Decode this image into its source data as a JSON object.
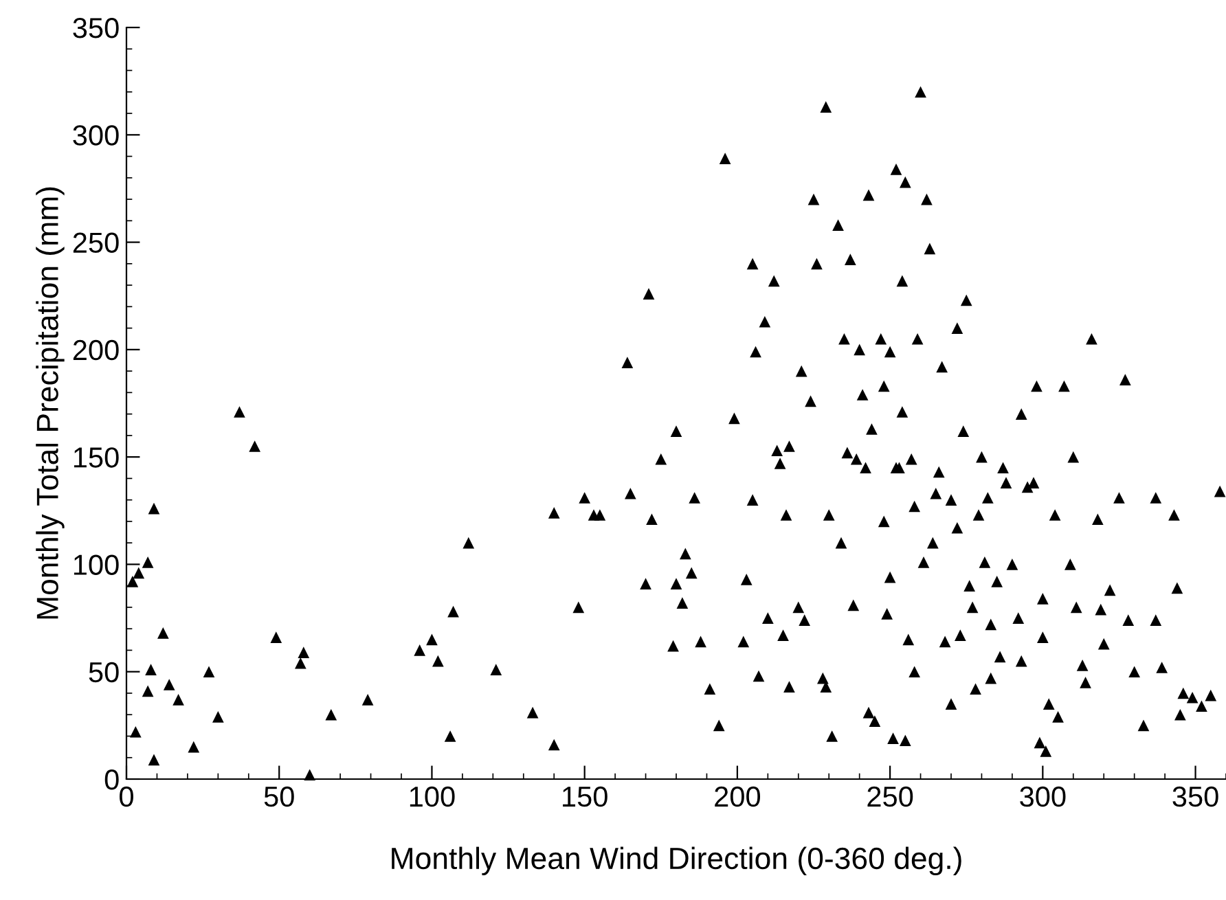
{
  "chart_data": {
    "type": "scatter",
    "xlabel": "Monthly Mean Wind Direction (0-360 deg.)",
    "ylabel": "Monthly Total Precipitation (mm)",
    "xlim": [
      0,
      360
    ],
    "xticks": [
      0,
      50,
      100,
      150,
      200,
      250,
      300,
      350
    ],
    "ylim": [
      0,
      350
    ],
    "yticks": [
      0,
      50,
      100,
      150,
      200,
      250,
      300,
      350
    ],
    "marker": "triangle",
    "grid": false,
    "legend": false,
    "series": [
      {
        "color": "#000000",
        "x": [
          2,
          4,
          7,
          9,
          3,
          8,
          7,
          12,
          14,
          17,
          9,
          22,
          27,
          30,
          37,
          42,
          49,
          57,
          58,
          60,
          67,
          79,
          96,
          100,
          102,
          106,
          107,
          112,
          121,
          133,
          140,
          140,
          148,
          150,
          153,
          155,
          164,
          165,
          170,
          171,
          172,
          175,
          179,
          180,
          180,
          182,
          183,
          185,
          186,
          188,
          191,
          194,
          196,
          199,
          202,
          203,
          205,
          205,
          206,
          207,
          209,
          210,
          212,
          213,
          214,
          215,
          216,
          217,
          217,
          220,
          221,
          222,
          224,
          225,
          226,
          228,
          229,
          229,
          230,
          231,
          233,
          234,
          235,
          236,
          237,
          238,
          239,
          240,
          241,
          242,
          243,
          243,
          244,
          245,
          247,
          248,
          248,
          249,
          250,
          250,
          251,
          252,
          252,
          253,
          254,
          254,
          255,
          255,
          256,
          257,
          258,
          258,
          259,
          260,
          261,
          262,
          263,
          264,
          265,
          266,
          267,
          268,
          270,
          270,
          272,
          272,
          273,
          274,
          275,
          276,
          277,
          278,
          279,
          280,
          281,
          282,
          283,
          283,
          285,
          286,
          287,
          288,
          290,
          292,
          293,
          293,
          295,
          297,
          298,
          299,
          300,
          300,
          301,
          302,
          304,
          305,
          307,
          309,
          310,
          311,
          313,
          314,
          316,
          318,
          319,
          320,
          322,
          325,
          327,
          328,
          330,
          333,
          337,
          337,
          339,
          343,
          344,
          345,
          346,
          349,
          352,
          355,
          358
        ],
        "values": [
          92,
          96,
          101,
          126,
          22,
          51,
          41,
          68,
          44,
          37,
          9,
          15,
          50,
          29,
          171,
          155,
          66,
          54,
          59,
          2,
          30,
          37,
          60,
          65,
          55,
          20,
          78,
          110,
          51,
          31,
          16,
          124,
          80,
          131,
          123,
          123,
          194,
          133,
          91,
          226,
          121,
          149,
          62,
          91,
          162,
          82,
          105,
          96,
          131,
          64,
          42,
          25,
          289,
          168,
          64,
          93,
          130,
          240,
          199,
          48,
          213,
          75,
          232,
          153,
          147,
          67,
          123,
          155,
          43,
          80,
          190,
          74,
          176,
          270,
          240,
          47,
          313,
          43,
          123,
          20,
          258,
          110,
          205,
          152,
          242,
          81,
          149,
          200,
          179,
          145,
          31,
          272,
          163,
          27,
          205,
          183,
          120,
          77,
          199,
          94,
          19,
          284,
          145,
          145,
          232,
          171,
          18,
          278,
          65,
          149,
          127,
          50,
          205,
          320,
          101,
          270,
          247,
          110,
          133,
          143,
          192,
          64,
          130,
          35,
          210,
          117,
          67,
          162,
          223,
          90,
          80,
          42,
          123,
          150,
          101,
          131,
          47,
          72,
          92,
          57,
          145,
          138,
          100,
          75,
          170,
          55,
          136,
          138,
          183,
          17,
          66,
          84,
          13,
          35,
          123,
          29,
          183,
          100,
          150,
          80,
          53,
          45,
          205,
          121,
          79,
          63,
          88,
          131,
          186,
          74,
          50,
          25,
          131,
          74,
          52,
          123,
          89,
          30,
          40,
          38,
          34,
          39,
          134
        ]
      }
    ]
  }
}
